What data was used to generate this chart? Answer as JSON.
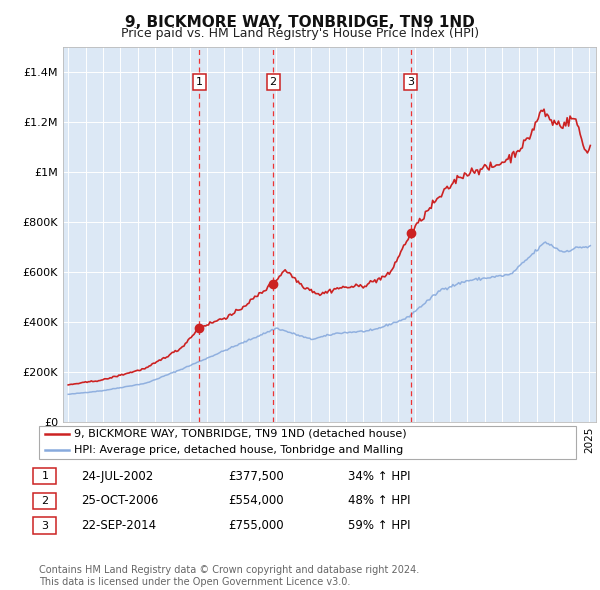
{
  "title": "9, BICKMORE WAY, TONBRIDGE, TN9 1ND",
  "subtitle": "Price paid vs. HM Land Registry's House Price Index (HPI)",
  "ylim": [
    0,
    1500000
  ],
  "yticks": [
    0,
    200000,
    400000,
    600000,
    800000,
    1000000,
    1200000,
    1400000
  ],
  "ytick_labels": [
    "£0",
    "£200K",
    "£400K",
    "£600K",
    "£800K",
    "£1M",
    "£1.2M",
    "£1.4M"
  ],
  "x_start_year": 1995,
  "x_end_year": 2025,
  "background_color": "#ffffff",
  "plot_bg_color": "#dce8f5",
  "grid_color": "#ffffff",
  "hpi_line_color": "#88aadd",
  "price_line_color": "#cc2222",
  "sale_vline_color": "#ee3333",
  "sales": [
    {
      "date": 2002.56,
      "price": 377500,
      "label": "1"
    },
    {
      "date": 2006.81,
      "price": 554000,
      "label": "2"
    },
    {
      "date": 2014.73,
      "price": 755000,
      "label": "3"
    }
  ],
  "sale_table": [
    {
      "num": "1",
      "date": "24-JUL-2002",
      "price": "£377,500",
      "change": "34% ↑ HPI"
    },
    {
      "num": "2",
      "date": "25-OCT-2006",
      "price": "£554,000",
      "change": "48% ↑ HPI"
    },
    {
      "num": "3",
      "date": "22-SEP-2014",
      "price": "£755,000",
      "change": "59% ↑ HPI"
    }
  ],
  "legend_line1": "9, BICKMORE WAY, TONBRIDGE, TN9 1ND (detached house)",
  "legend_line2": "HPI: Average price, detached house, Tonbridge and Malling",
  "footer": "Contains HM Land Registry data © Crown copyright and database right 2024.\nThis data is licensed under the Open Government Licence v3.0.",
  "hpi_anchors_t": [
    1995.0,
    1997.0,
    1999.5,
    2001.5,
    2004.0,
    2007.0,
    2009.0,
    2010.5,
    2012.5,
    2014.5,
    2016.5,
    2018.0,
    2019.5,
    2020.5,
    2021.5,
    2022.5,
    2023.5,
    2024.5,
    2025.0
  ],
  "hpi_anchors_v": [
    110000,
    125000,
    155000,
    210000,
    285000,
    375000,
    330000,
    355000,
    365000,
    415000,
    530000,
    565000,
    580000,
    590000,
    655000,
    720000,
    680000,
    700000,
    700000
  ],
  "prop_anchors_t": [
    1995.0,
    1997.0,
    1999.5,
    2001.5,
    2002.56,
    2004.5,
    2006.81,
    2007.5,
    2008.5,
    2009.5,
    2010.5,
    2012.0,
    2013.5,
    2014.73,
    2016.0,
    2017.5,
    2018.5,
    2019.5,
    2020.5,
    2021.5,
    2022.3,
    2022.9,
    2023.5,
    2024.2,
    2024.8,
    2025.0
  ],
  "prop_anchors_v": [
    148000,
    168000,
    215000,
    295000,
    377500,
    430000,
    554000,
    610000,
    545000,
    510000,
    535000,
    545000,
    590000,
    755000,
    870000,
    980000,
    1010000,
    1020000,
    1060000,
    1130000,
    1250000,
    1200000,
    1190000,
    1220000,
    1080000,
    1100000
  ]
}
